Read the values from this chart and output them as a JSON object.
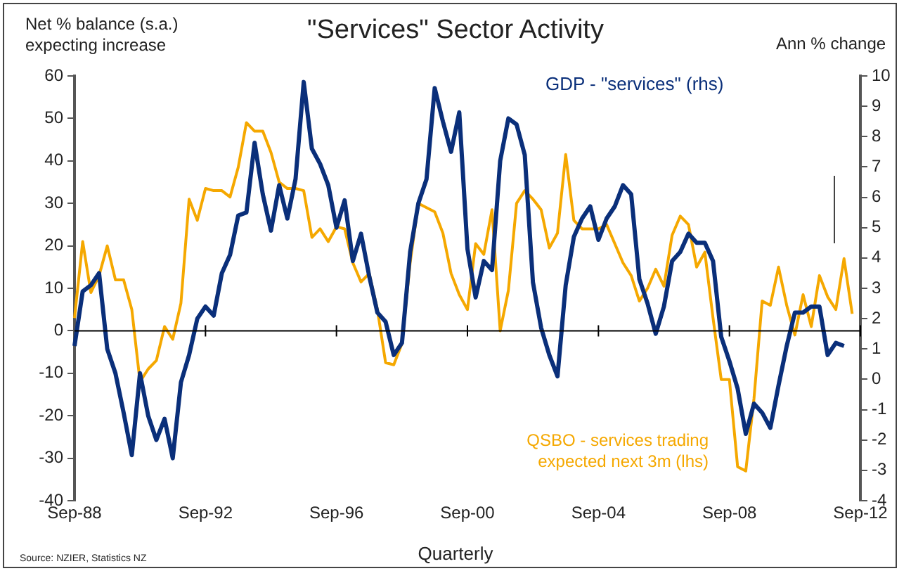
{
  "chart_data": {
    "type": "line",
    "title": "\"Services\" Sector Activity",
    "ylabel": "Net % balance (s.a.)\nexpecting increase",
    "y2label": "Ann % change",
    "xlabel": "Quarterly",
    "annotations": [
      "Source: NZIER, Statistics NZ"
    ],
    "categories": [
      "Sep-88",
      null,
      null,
      null,
      null,
      null,
      null,
      null,
      null,
      null,
      null,
      null,
      null,
      null,
      null,
      null,
      "Sep-92",
      null,
      null,
      null,
      null,
      null,
      null,
      null,
      null,
      null,
      null,
      null,
      null,
      null,
      null,
      null,
      "Sep-96",
      null,
      null,
      null,
      null,
      null,
      null,
      null,
      null,
      null,
      null,
      null,
      null,
      null,
      null,
      null,
      "Sep-00",
      null,
      null,
      null,
      null,
      null,
      null,
      null,
      null,
      null,
      null,
      null,
      null,
      null,
      null,
      null,
      "Sep-04",
      null,
      null,
      null,
      null,
      null,
      null,
      null,
      null,
      null,
      null,
      null,
      null,
      null,
      null,
      null,
      "Sep-08",
      null,
      null,
      null,
      null,
      null,
      null,
      null,
      null,
      null,
      null,
      null,
      null,
      null,
      null,
      null,
      "Sep-12"
    ],
    "ylim": [
      -40,
      60
    ],
    "yticks": [
      -40,
      -30,
      -20,
      -10,
      0,
      10,
      20,
      30,
      40,
      50,
      60
    ],
    "y2lim": [
      -4,
      10
    ],
    "y2ticks": [
      -4,
      -3,
      -2,
      -1,
      0,
      1,
      2,
      3,
      4,
      5,
      6,
      7,
      8,
      9,
      10
    ],
    "ref_lines": [
      {
        "axis": "y",
        "value": 0,
        "color": "#000000"
      }
    ],
    "grid": false,
    "legend": false,
    "marker": "none",
    "line_style": "solid",
    "series": [
      {
        "name": "GDP - \"services\" (rhs)",
        "color": "#0a2f7a",
        "axis": "y2",
        "values": [
          1.1,
          2.9,
          3.1,
          3.5,
          1.0,
          0.2,
          -1.1,
          -2.5,
          0.2,
          -1.2,
          -2.0,
          -1.3,
          -2.6,
          -0.1,
          0.8,
          2.0,
          2.4,
          2.1,
          3.5,
          4.1,
          5.4,
          5.5,
          7.8,
          6.1,
          4.9,
          6.4,
          5.3,
          6.6,
          9.8,
          7.6,
          7.1,
          6.4,
          5.0,
          5.9,
          3.9,
          4.8,
          3.4,
          2.2,
          1.9,
          0.8,
          1.2,
          4.2,
          5.8,
          6.6,
          9.6,
          8.5,
          7.5,
          8.8,
          4.3,
          2.7,
          3.9,
          3.6,
          7.2,
          8.6,
          8.4,
          7.4,
          3.2,
          1.7,
          0.8,
          0.1,
          3.1,
          4.7,
          5.3,
          5.7,
          4.6,
          5.3,
          5.7,
          6.4,
          6.1,
          3.3,
          2.5,
          1.5,
          2.4,
          3.9,
          4.2,
          4.8,
          4.5,
          4.5,
          3.9,
          1.4,
          0.6,
          -0.3,
          -1.8,
          -0.8,
          -1.1,
          -1.6,
          -0.2,
          1.1,
          2.2,
          2.2,
          2.4,
          2.4,
          0.8,
          1.2,
          1.1,
          null,
          null
        ]
      },
      {
        "name": "QSBO - services trading\nexpected next 3m (lhs)",
        "color": "#f5a800",
        "values": [
          3,
          21,
          9,
          13,
          20,
          12,
          12,
          5,
          -12,
          -9,
          -7,
          1,
          -2,
          6.5,
          31,
          26,
          33.5,
          33,
          33,
          31.5,
          38.5,
          49,
          47,
          47,
          42,
          35,
          33.5,
          33.5,
          33,
          22,
          24,
          21,
          24.5,
          24,
          16,
          11.5,
          13.5,
          5,
          -7.5,
          -8,
          -3,
          16,
          30,
          29,
          28,
          23,
          13.5,
          8.5,
          5,
          20.5,
          18,
          28.5,
          0,
          9.5,
          30,
          33,
          31,
          28.5,
          19.5,
          23,
          41.5,
          26,
          24,
          24,
          24,
          25,
          20.5,
          16,
          13,
          7,
          10,
          14.5,
          10.5,
          22.5,
          27,
          25,
          15,
          18.5,
          3,
          -11.5,
          -11.5,
          -32,
          -33,
          -16,
          7,
          6,
          15,
          6,
          -1,
          8.5,
          1,
          13,
          8,
          5,
          17,
          4,
          null
        ]
      }
    ]
  }
}
